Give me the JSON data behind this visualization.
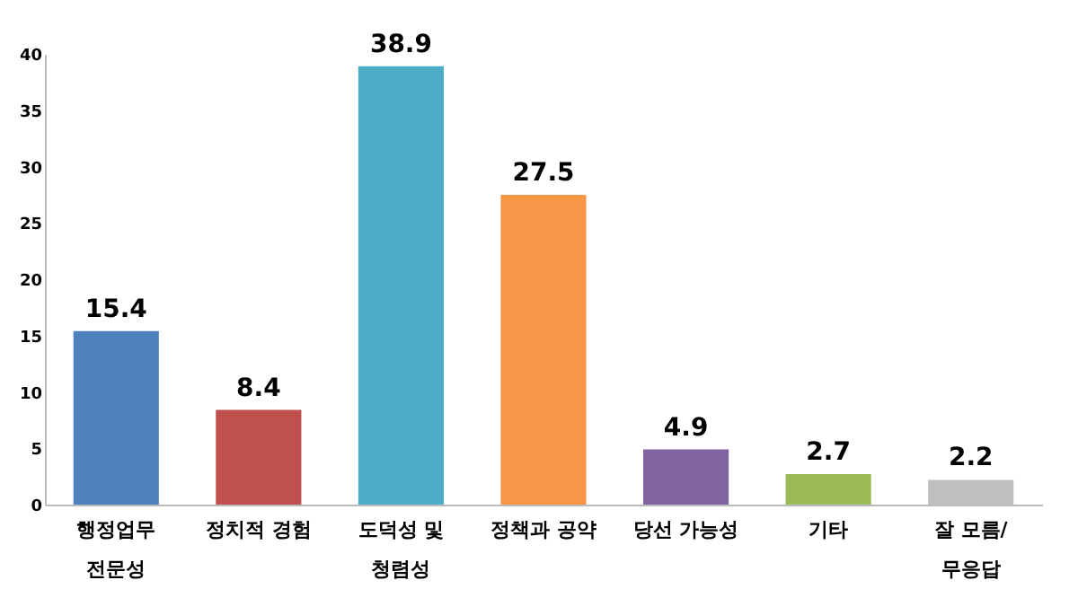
{
  "chart_data": {
    "type": "bar",
    "categories": [
      "행정업무\n전문성",
      "정치적 경험",
      "도덕성 및\n청렴성",
      "정책과 공약",
      "당선 가능성",
      "기타",
      "잘 모름/\n무응답"
    ],
    "values": [
      15.4,
      8.4,
      38.9,
      27.5,
      4.9,
      2.7,
      2.2
    ],
    "colors": [
      "#4f81bd",
      "#c0504d",
      "#4bacc6",
      "#f79646",
      "#8064a2",
      "#9bbb59",
      "#bfbfbf"
    ],
    "ylim": [
      0,
      40
    ],
    "yticks": [
      0,
      5,
      10,
      15,
      20,
      25,
      30,
      35,
      40
    ],
    "grid": false,
    "data_labels": true
  }
}
